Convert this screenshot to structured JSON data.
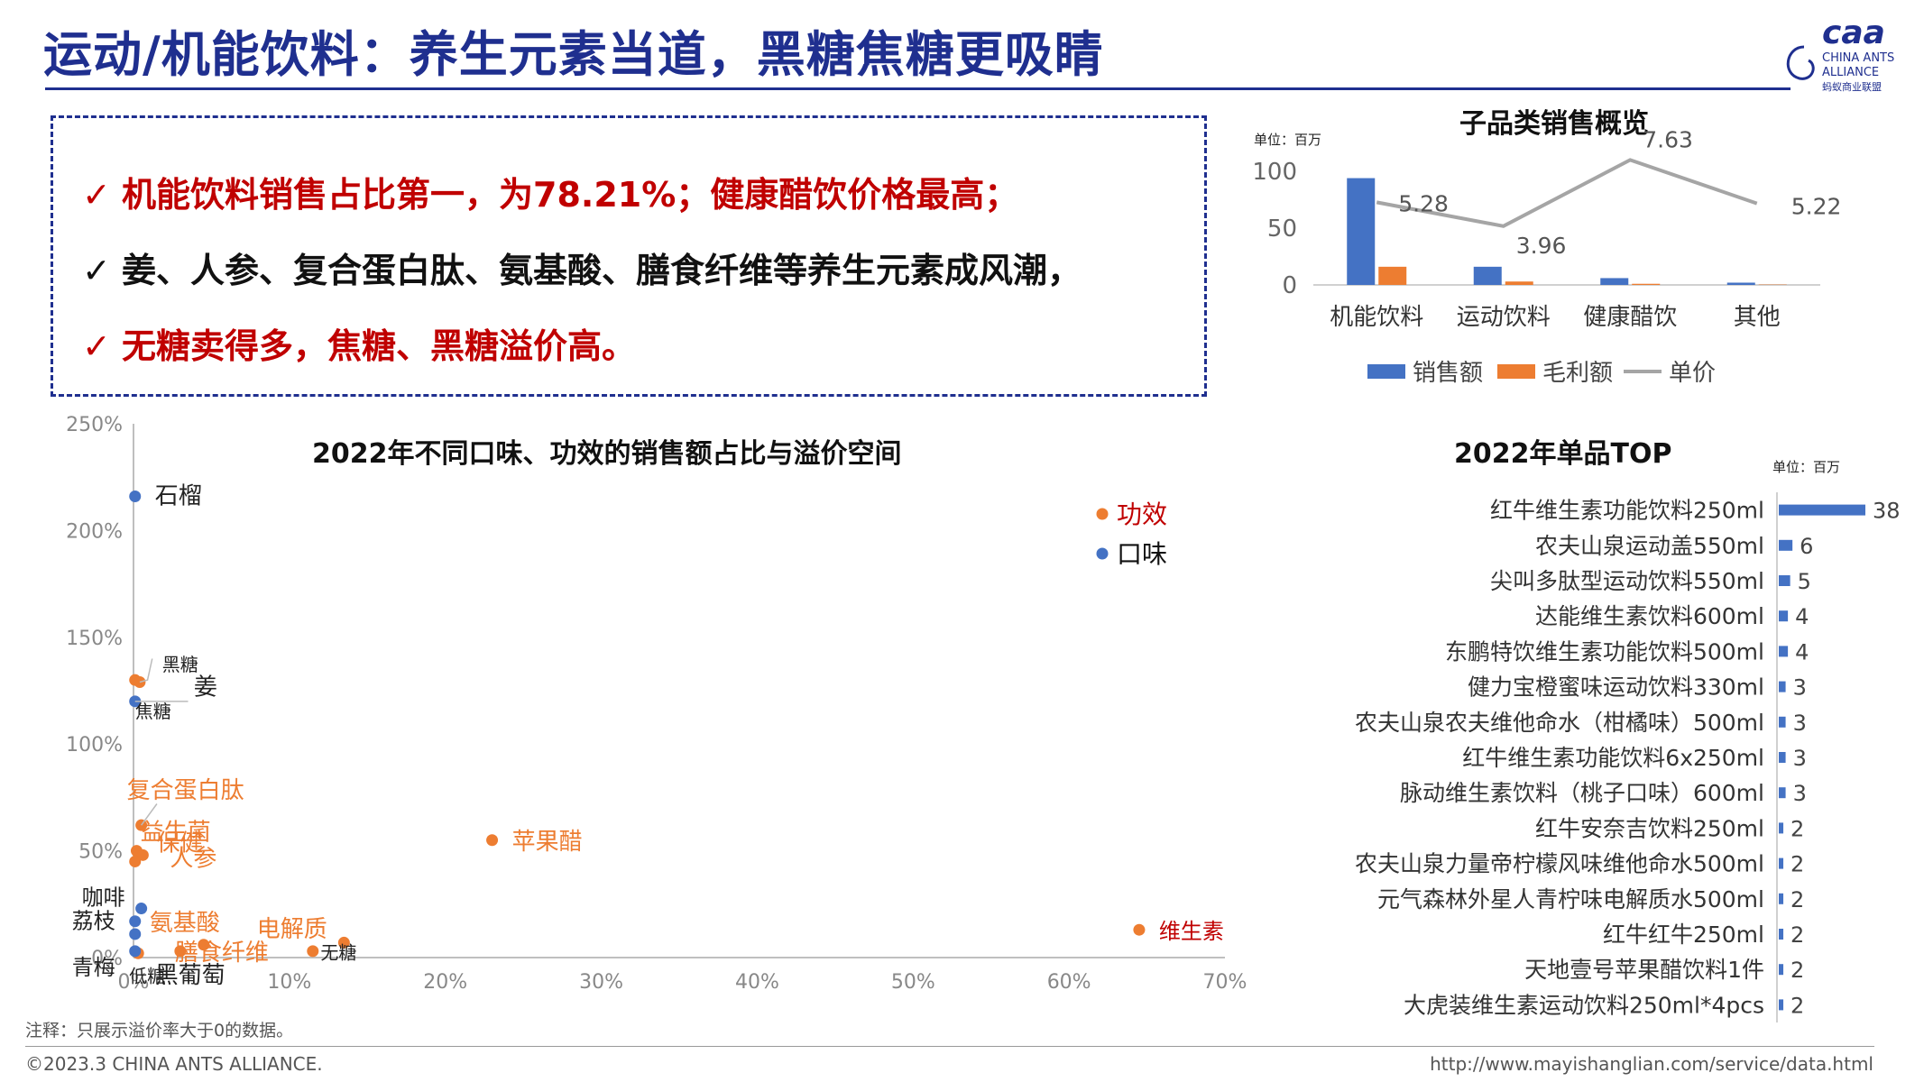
{
  "header": {
    "title": "运动/机能饮料：养生元素当道，黑糖焦糖更吸睛",
    "logo_text": "CHINA ANTS ALLIANCE",
    "logo_line1": "CHINA ANTS",
    "logo_line2": "ALLIANCE",
    "logo_cn": "蚂蚁商业联盟",
    "logo_mark": "caa"
  },
  "bullets": [
    {
      "text": "机能饮料销售占比第一，为78.21%；健康醋饮价格最高；",
      "color": "#c00000"
    },
    {
      "text": "姜、人参、复合蛋白肽、氨基酸、膳食纤维等养生元素成风潮，",
      "color": "#111111"
    },
    {
      "text": "无糖卖得多，焦糖、黑糖溢价高。",
      "color": "#c00000"
    }
  ],
  "check_mark": "✓",
  "note": "注释：只展示溢价率大于0的数据。",
  "footer": {
    "copyright": "©2023.3 CHINA ANTS ALLIANCE.",
    "url": "http://www.mayishanglian.com/service/data.html"
  },
  "colors": {
    "blue": "#4472c4",
    "orange": "#ed7d31",
    "gray": "#a5a5a5",
    "red": "#c00000",
    "navy": "#1f2f8f"
  },
  "chart_data": [
    {
      "type": "scatter",
      "title": "2022年不同口味、功效的销售额占比与溢价空间",
      "xlim": [
        0,
        70
      ],
      "ylim": [
        0,
        250
      ],
      "x_ticks": [
        "0%",
        "10%",
        "20%",
        "30%",
        "40%",
        "50%",
        "60%",
        "70%"
      ],
      "y_ticks": [
        "0%",
        "50%",
        "100%",
        "150%",
        "200%",
        "250%"
      ],
      "legend": [
        "功效",
        "口味"
      ],
      "legend_position": "top-right",
      "series": [
        {
          "name": "功效",
          "color": "#ed7d31",
          "points": [
            {
              "label": "维生素",
              "x": 64.5,
              "y": 13,
              "label_color": "#c00000"
            },
            {
              "label": "苹果醋",
              "x": 23,
              "y": 55
            },
            {
              "label": "复合蛋白肽",
              "x": 0.5,
              "y": 62
            },
            {
              "label": "保健",
              "x": 0.2,
              "y": 50
            },
            {
              "label": "人参",
              "x": 0.6,
              "y": 48
            },
            {
              "label": "益生菌",
              "x": 0.1,
              "y": 45
            },
            {
              "label": "氨基酸",
              "x": 4.5,
              "y": 6
            },
            {
              "label": "膳食纤维",
              "x": 3,
              "y": 3
            },
            {
              "label": "电解质",
              "x": 11.5,
              "y": 3
            },
            {
              "label": "无糖",
              "x": 13.5,
              "y": 7
            },
            {
              "label": "低糖",
              "x": 0.3,
              "y": 2
            },
            {
              "label": "黑糖",
              "x": 0.1,
              "y": 130
            },
            {
              "label": "姜",
              "x": 0.4,
              "y": 129
            }
          ]
        },
        {
          "name": "口味",
          "color": "#4472c4",
          "points": [
            {
              "label": "石榴",
              "x": 0.1,
              "y": 216
            },
            {
              "label": "焦糖",
              "x": 0.1,
              "y": 120
            },
            {
              "label": "咖啡",
              "x": 0.5,
              "y": 23
            },
            {
              "label": "荔枝",
              "x": 0.1,
              "y": 17
            },
            {
              "label": "黑葡萄",
              "x": 0.1,
              "y": 11
            },
            {
              "label": "青梅",
              "x": 0.1,
              "y": 3
            }
          ]
        }
      ]
    },
    {
      "type": "bar",
      "title": "子品类销售概览",
      "unit": "单位：百万",
      "categories": [
        "机能饮料",
        "运动饮料",
        "健康醋饮",
        "其他"
      ],
      "ylim": [
        0,
        100
      ],
      "y_ticks": [
        "0",
        "50",
        "100"
      ],
      "legend_position": "bottom",
      "series": [
        {
          "name": "销售额",
          "type": "bar",
          "color": "#4472c4",
          "values": [
            94,
            16,
            6,
            2
          ]
        },
        {
          "name": "毛利额",
          "type": "bar",
          "color": "#ed7d31",
          "values": [
            16,
            3,
            1,
            0.3
          ]
        },
        {
          "name": "单价",
          "type": "line",
          "color": "#a5a5a5",
          "values": [
            5.28,
            3.96,
            7.63,
            5.22
          ],
          "labels": [
            "5.28",
            "3.96",
            "7.63",
            "5.22"
          ]
        }
      ]
    },
    {
      "type": "bar",
      "orientation": "horizontal",
      "title": "2022年单品TOP",
      "unit": "单位：百万",
      "color": "#4472c4",
      "categories": [
        "红牛维生素功能饮料250ml",
        "农夫山泉运动盖550ml",
        "尖叫多肽型运动饮料550ml",
        "达能维生素饮料600ml",
        "东鹏特饮维生素功能饮料500ml",
        "健力宝橙蜜味运动饮料330ml",
        "农夫山泉农夫维他命水（柑橘味）500ml",
        "红牛维生素功能饮料6x250ml",
        "脉动维生素饮料（桃子口味）600ml",
        "红牛安奈吉饮料250ml",
        "农夫山泉力量帝柠檬风味维他命水500ml",
        "元气森林外星人青柠味电解质水500ml",
        "红牛红牛250ml",
        "天地壹号苹果醋饮料1件",
        "大虎装维生素运动饮料250ml*4pcs"
      ],
      "values": [
        38,
        6,
        5,
        4,
        4,
        3,
        3,
        3,
        3,
        2,
        2,
        2,
        2,
        2,
        2
      ]
    }
  ]
}
